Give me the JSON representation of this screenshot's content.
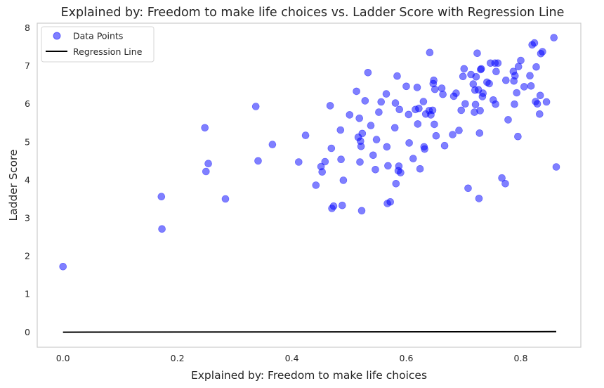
{
  "chart_data": {
    "type": "scatter",
    "title": "Explained by: Freedom to make life choices vs. Ladder Score with Regression Line",
    "xlabel": "Explained by: Freedom to make life choices",
    "ylabel": "Ladder Score",
    "xlim": [
      -0.045,
      0.905
    ],
    "ylim": [
      -0.4,
      8.12
    ],
    "xticks": [
      0.0,
      0.2,
      0.4,
      0.6,
      0.8
    ],
    "xtick_labels": [
      "0.0",
      "0.2",
      "0.4",
      "0.6",
      "0.8"
    ],
    "yticks": [
      0,
      1,
      2,
      3,
      4,
      5,
      6,
      7,
      8
    ],
    "ytick_labels": [
      "0",
      "1",
      "2",
      "3",
      "4",
      "5",
      "6",
      "7",
      "8"
    ],
    "grid": false,
    "legend_position": "top-left",
    "series": [
      {
        "name": "Data Points",
        "kind": "scatter",
        "color": "#0000ff",
        "points": [
          [
            0.0,
            1.72
          ],
          [
            0.172,
            3.56
          ],
          [
            0.173,
            2.71
          ],
          [
            0.248,
            5.37
          ],
          [
            0.25,
            4.22
          ],
          [
            0.254,
            4.43
          ],
          [
            0.284,
            3.5
          ],
          [
            0.337,
            5.93
          ],
          [
            0.341,
            4.5
          ],
          [
            0.366,
            4.93
          ],
          [
            0.412,
            4.47
          ],
          [
            0.424,
            5.17
          ],
          [
            0.442,
            3.86
          ],
          [
            0.451,
            4.35
          ],
          [
            0.453,
            4.21
          ],
          [
            0.458,
            4.48
          ],
          [
            0.467,
            5.95
          ],
          [
            0.469,
            4.83
          ],
          [
            0.47,
            3.25
          ],
          [
            0.473,
            3.31
          ],
          [
            0.485,
            5.31
          ],
          [
            0.486,
            4.54
          ],
          [
            0.488,
            3.33
          ],
          [
            0.49,
            3.99
          ],
          [
            0.501,
            5.71
          ],
          [
            0.513,
            6.33
          ],
          [
            0.516,
            5.12
          ],
          [
            0.518,
            5.62
          ],
          [
            0.519,
            4.47
          ],
          [
            0.52,
            5.02
          ],
          [
            0.521,
            4.88
          ],
          [
            0.522,
            3.19
          ],
          [
            0.523,
            5.22
          ],
          [
            0.528,
            6.08
          ],
          [
            0.533,
            6.82
          ],
          [
            0.538,
            5.43
          ],
          [
            0.542,
            4.65
          ],
          [
            0.546,
            4.27
          ],
          [
            0.548,
            5.06
          ],
          [
            0.552,
            5.78
          ],
          [
            0.556,
            6.05
          ],
          [
            0.565,
            6.26
          ],
          [
            0.566,
            4.87
          ],
          [
            0.567,
            3.38
          ],
          [
            0.568,
            4.37
          ],
          [
            0.572,
            3.42
          ],
          [
            0.58,
            5.37
          ],
          [
            0.581,
            6.02
          ],
          [
            0.582,
            3.9
          ],
          [
            0.584,
            6.73
          ],
          [
            0.586,
            4.24
          ],
          [
            0.587,
            4.36
          ],
          [
            0.588,
            5.85
          ],
          [
            0.59,
            4.19
          ],
          [
            0.6,
            6.46
          ],
          [
            0.604,
            5.72
          ],
          [
            0.605,
            4.97
          ],
          [
            0.612,
            4.56
          ],
          [
            0.616,
            5.85
          ],
          [
            0.619,
            6.43
          ],
          [
            0.62,
            5.47
          ],
          [
            0.622,
            5.88
          ],
          [
            0.624,
            4.29
          ],
          [
            0.63,
            6.06
          ],
          [
            0.631,
            4.87
          ],
          [
            0.632,
            4.81
          ],
          [
            0.634,
            5.73
          ],
          [
            0.64,
            5.82
          ],
          [
            0.641,
            7.35
          ],
          [
            0.643,
            5.71
          ],
          [
            0.646,
            5.83
          ],
          [
            0.647,
            6.53
          ],
          [
            0.648,
            6.62
          ],
          [
            0.649,
            5.46
          ],
          [
            0.65,
            6.38
          ],
          [
            0.652,
            5.16
          ],
          [
            0.662,
            6.41
          ],
          [
            0.664,
            6.25
          ],
          [
            0.667,
            4.9
          ],
          [
            0.681,
            5.19
          ],
          [
            0.683,
            6.2
          ],
          [
            0.687,
            6.28
          ],
          [
            0.692,
            5.3
          ],
          [
            0.696,
            5.83
          ],
          [
            0.699,
            6.72
          ],
          [
            0.701,
            6.92
          ],
          [
            0.703,
            6.0
          ],
          [
            0.708,
            3.78
          ],
          [
            0.713,
            6.77
          ],
          [
            0.717,
            6.52
          ],
          [
            0.719,
            5.78
          ],
          [
            0.72,
            6.36
          ],
          [
            0.721,
            5.98
          ],
          [
            0.722,
            6.71
          ],
          [
            0.724,
            7.33
          ],
          [
            0.726,
            6.37
          ],
          [
            0.727,
            3.51
          ],
          [
            0.728,
            5.23
          ],
          [
            0.729,
            5.82
          ],
          [
            0.73,
            6.9
          ],
          [
            0.731,
            6.92
          ],
          [
            0.733,
            6.19
          ],
          [
            0.734,
            6.28
          ],
          [
            0.741,
            6.57
          ],
          [
            0.745,
            6.53
          ],
          [
            0.747,
            7.07
          ],
          [
            0.752,
            6.1
          ],
          [
            0.755,
            7.07
          ],
          [
            0.756,
            5.99
          ],
          [
            0.757,
            6.85
          ],
          [
            0.76,
            7.07
          ],
          [
            0.767,
            4.05
          ],
          [
            0.773,
            3.9
          ],
          [
            0.774,
            6.62
          ],
          [
            0.778,
            5.58
          ],
          [
            0.787,
            6.85
          ],
          [
            0.788,
            6.6
          ],
          [
            0.789,
            5.99
          ],
          [
            0.79,
            6.74
          ],
          [
            0.793,
            6.29
          ],
          [
            0.795,
            5.14
          ],
          [
            0.796,
            6.98
          ],
          [
            0.8,
            7.14
          ],
          [
            0.806,
            6.45
          ],
          [
            0.816,
            6.74
          ],
          [
            0.818,
            6.47
          ],
          [
            0.82,
            7.55
          ],
          [
            0.824,
            7.6
          ],
          [
            0.826,
            6.06
          ],
          [
            0.827,
            6.97
          ],
          [
            0.829,
            6.0
          ],
          [
            0.833,
            5.73
          ],
          [
            0.834,
            6.22
          ],
          [
            0.835,
            7.32
          ],
          [
            0.838,
            7.37
          ],
          [
            0.845,
            6.05
          ],
          [
            0.858,
            7.74
          ],
          [
            0.862,
            4.34
          ]
        ]
      },
      {
        "name": "Regression Line",
        "kind": "line",
        "color": "#000000",
        "x": [
          0.0,
          0.862
        ],
        "y": [
          -0.005,
          0.01
        ]
      }
    ]
  }
}
